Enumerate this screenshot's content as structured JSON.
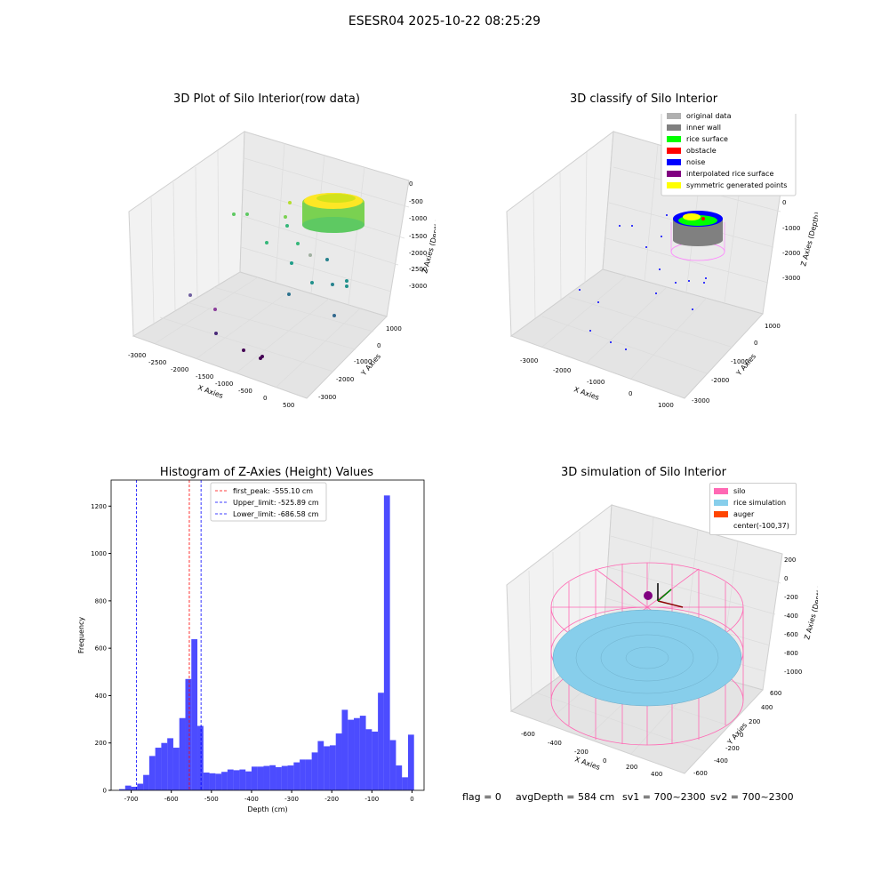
{
  "figure": {
    "suptitle": "ESESR04 2025-10-22 08:25:29"
  },
  "panel1": {
    "title": "3D Plot of Silo Interior(row data)",
    "xlabel": "X Axies",
    "ylabel": "Y Axies",
    "zlabel": "Z Axies (Depth)",
    "xticks": [
      "-3000",
      "-2500",
      "-2000",
      "-1500",
      "-1000",
      "-500",
      "0",
      "500"
    ],
    "yticks": [
      "1000",
      "0",
      "-1000",
      "-2000",
      "-3000"
    ],
    "zticks": [
      "0",
      "-500",
      "-1000",
      "-1500",
      "-2000",
      "-2500",
      "-3000"
    ]
  },
  "panel2": {
    "title": "3D classify of Silo Interior",
    "xlabel": "X Axies",
    "ylabel": "Y Axies",
    "zlabel": "Z Axies (Depth)",
    "xticks": [
      "-3000",
      "-2000",
      "-1000",
      "0",
      "1000"
    ],
    "yticks": [
      "1000",
      "0",
      "-1000",
      "-2000",
      "-3000"
    ],
    "zticks": [
      "0",
      "-1000",
      "-2000",
      "-3000"
    ],
    "legend": [
      {
        "label": "original data",
        "color": "#b0b0b0"
      },
      {
        "label": "inner wall",
        "color": "#808080"
      },
      {
        "label": "rice surface",
        "color": "#00ff00"
      },
      {
        "label": "obstacle",
        "color": "#ff0000"
      },
      {
        "label": "noise",
        "color": "#0000ff"
      },
      {
        "label": "interpolated rice surface",
        "color": "#800080"
      },
      {
        "label": "symmetric generated points",
        "color": "#ffff00"
      }
    ]
  },
  "panel4": {
    "title": "3D simulation of Silo Interior",
    "xlabel": "X Axies",
    "ylabel": "Y Axies",
    "zlabel": "Z Axies (Depth)",
    "xticks": [
      "-600",
      "-400",
      "-200",
      "0",
      "200",
      "400"
    ],
    "yticks": [
      "600",
      "400",
      "200",
      "0",
      "-200",
      "-400",
      "-600"
    ],
    "zticks": [
      "200",
      "0",
      "-200",
      "-400",
      "-600",
      "-800",
      "-1000"
    ],
    "legend": [
      {
        "label": "silo",
        "color": "#ff69b4"
      },
      {
        "label": "rice simulation",
        "color": "#87ceeb"
      },
      {
        "label": "auger",
        "color": "#ff4500"
      },
      {
        "label": "center(-100,37)",
        "color": ""
      }
    ]
  },
  "footer": {
    "flag": "flag = 0",
    "avg_depth": "avgDepth = 584 cm",
    "sv1": "sv1 = 700~2300",
    "sv2": "sv2 = 700~2300"
  },
  "chart_data": {
    "type": "bar",
    "title": "Histogram of Z-Axies (Height) Values",
    "xlabel": "Depth (cm)",
    "ylabel": "Frequency",
    "xlim": [
      -750,
      30
    ],
    "ylim": [
      0,
      1310
    ],
    "xticks": [
      -700,
      -600,
      -500,
      -400,
      -300,
      -200,
      -100,
      0
    ],
    "yticks": [
      0,
      200,
      400,
      600,
      800,
      1000,
      1200
    ],
    "bin_edges": [
      -730,
      -715,
      -700,
      -685,
      -670,
      -655,
      -640,
      -625,
      -610,
      -595,
      -580,
      -565,
      -550,
      -535,
      -520,
      -505,
      -490,
      -475,
      -460,
      -445,
      -430,
      -415,
      -400,
      -385,
      -370,
      -355,
      -340,
      -325,
      -310,
      -295,
      -280,
      -265,
      -250,
      -235,
      -220,
      -205,
      -190,
      -175,
      -160,
      -145,
      -130,
      -115,
      -100,
      -85,
      -70,
      -55,
      -40,
      -25,
      -10,
      5
    ],
    "values": [
      5,
      20,
      15,
      28,
      65,
      145,
      180,
      200,
      220,
      180,
      305,
      470,
      638,
      272,
      75,
      72,
      70,
      78,
      88,
      85,
      88,
      80,
      100,
      100,
      103,
      106,
      98,
      103,
      105,
      118,
      130,
      130,
      160,
      208,
      186,
      190,
      240,
      340,
      298,
      305,
      315,
      258,
      248,
      412,
      1245,
      212,
      105,
      55,
      235
    ],
    "bar_color": "#0000ff",
    "vlines": [
      {
        "label": "first_peak: -555.10 cm",
        "x": -555.1,
        "color": "#ff0000"
      },
      {
        "label": "Upper_limit: -525.89 cm",
        "x": -525.89,
        "color": "#0000ff"
      },
      {
        "label": "Lower_limit: -686.58 cm",
        "x": -686.58,
        "color": "#0000ff"
      }
    ],
    "legend_position": "upper center"
  }
}
